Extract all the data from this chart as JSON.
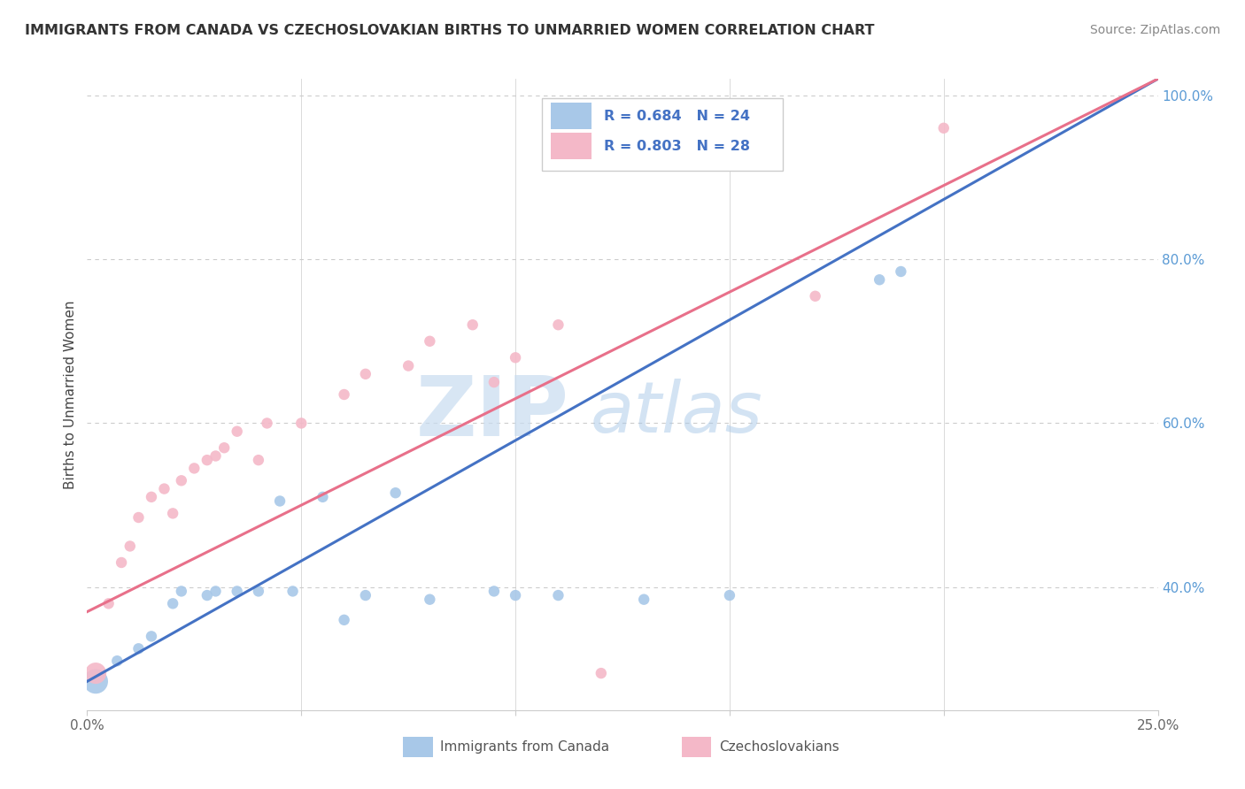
{
  "title": "IMMIGRANTS FROM CANADA VS CZECHOSLOVAKIAN BIRTHS TO UNMARRIED WOMEN CORRELATION CHART",
  "source": "Source: ZipAtlas.com",
  "ylabel": "Births to Unmarried Women",
  "xlim": [
    0.0,
    0.25
  ],
  "ylim": [
    0.25,
    1.02
  ],
  "blue_color": "#A8C8E8",
  "pink_color": "#F4B8C8",
  "blue_line_color": "#4472C4",
  "pink_line_color": "#E8708A",
  "legend_R_blue": "R = 0.684",
  "legend_N_blue": "N = 24",
  "legend_R_pink": "R = 0.803",
  "legend_N_pink": "N = 28",
  "watermark_zip": "ZIP",
  "watermark_atlas": "atlas",
  "background_color": "#FFFFFF",
  "grid_color": "#CCCCCC",
  "ytick_color": "#5B9BD5",
  "xtick_color": "#666666",
  "blue_scatter_x": [
    0.002,
    0.007,
    0.012,
    0.015,
    0.02,
    0.022,
    0.028,
    0.03,
    0.035,
    0.04,
    0.045,
    0.048,
    0.055,
    0.06,
    0.065,
    0.072,
    0.08,
    0.095,
    0.1,
    0.11,
    0.13,
    0.15,
    0.185,
    0.19
  ],
  "blue_scatter_y": [
    0.285,
    0.31,
    0.325,
    0.34,
    0.38,
    0.395,
    0.39,
    0.395,
    0.395,
    0.395,
    0.505,
    0.395,
    0.51,
    0.36,
    0.39,
    0.515,
    0.385,
    0.395,
    0.39,
    0.39,
    0.385,
    0.39,
    0.775,
    0.785
  ],
  "blue_scatter_sizes": [
    400,
    80,
    80,
    80,
    80,
    80,
    80,
    80,
    80,
    80,
    80,
    80,
    80,
    80,
    80,
    80,
    80,
    80,
    80,
    80,
    80,
    80,
    80,
    80
  ],
  "pink_scatter_x": [
    0.002,
    0.005,
    0.008,
    0.01,
    0.012,
    0.015,
    0.018,
    0.02,
    0.022,
    0.025,
    0.028,
    0.03,
    0.032,
    0.035,
    0.04,
    0.042,
    0.05,
    0.06,
    0.065,
    0.075,
    0.08,
    0.09,
    0.095,
    0.1,
    0.11,
    0.12,
    0.17,
    0.2
  ],
  "pink_scatter_y": [
    0.295,
    0.38,
    0.43,
    0.45,
    0.485,
    0.51,
    0.52,
    0.49,
    0.53,
    0.545,
    0.555,
    0.56,
    0.57,
    0.59,
    0.555,
    0.6,
    0.6,
    0.635,
    0.66,
    0.67,
    0.7,
    0.72,
    0.65,
    0.68,
    0.72,
    0.295,
    0.755,
    0.96
  ],
  "pink_scatter_sizes": [
    300,
    80,
    80,
    80,
    80,
    80,
    80,
    80,
    80,
    80,
    80,
    80,
    80,
    80,
    80,
    80,
    80,
    80,
    80,
    80,
    80,
    80,
    80,
    80,
    80,
    80,
    80,
    80
  ],
  "blue_line_x0": 0.0,
  "blue_line_y0": 0.285,
  "blue_line_x1": 0.25,
  "blue_line_y1": 1.02,
  "pink_line_x0": 0.0,
  "pink_line_y0": 0.37,
  "pink_line_x1": 0.25,
  "pink_line_y1": 1.02
}
